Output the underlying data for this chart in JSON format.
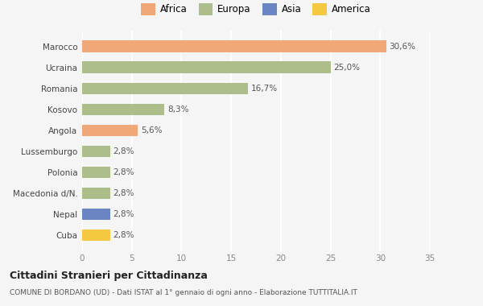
{
  "categories": [
    "Cuba",
    "Nepal",
    "Macedonia d/N.",
    "Polonia",
    "Lussemburgo",
    "Angola",
    "Kosovo",
    "Romania",
    "Ucraina",
    "Marocco"
  ],
  "values": [
    2.8,
    2.8,
    2.8,
    2.8,
    2.8,
    5.6,
    8.3,
    16.7,
    25.0,
    30.6
  ],
  "labels": [
    "2,8%",
    "2,8%",
    "2,8%",
    "2,8%",
    "2,8%",
    "5,6%",
    "8,3%",
    "16,7%",
    "25,0%",
    "30,6%"
  ],
  "colors": [
    "#F5C842",
    "#6B85C2",
    "#ADBE8A",
    "#ADBE8A",
    "#ADBE8A",
    "#F0A878",
    "#ADBE8A",
    "#ADBE8A",
    "#ADBE8A",
    "#F0A878"
  ],
  "legend_labels": [
    "Africa",
    "Europa",
    "Asia",
    "America"
  ],
  "legend_colors": [
    "#F0A878",
    "#ADBE8A",
    "#6B85C2",
    "#F5C842"
  ],
  "xlim": [
    0,
    35
  ],
  "xticks": [
    0,
    5,
    10,
    15,
    20,
    25,
    30,
    35
  ],
  "title": "Cittadini Stranieri per Cittadinanza",
  "subtitle": "COMUNE DI BORDANO (UD) - Dati ISTAT al 1° gennaio di ogni anno - Elaborazione TUTTITALIA.IT",
  "bg_color": "#f5f5f5",
  "grid_color": "#ffffff",
  "bar_height": 0.55
}
